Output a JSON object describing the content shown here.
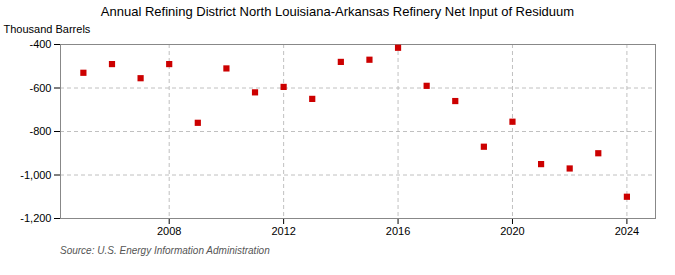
{
  "chart_data": {
    "type": "scatter",
    "title": "Annual Refining District North Louisiana-Arkansas Refinery Net Input of Residuum",
    "ylabel": "Thousand Barrels",
    "annotation": "Source: U.S. Energy Information Administration",
    "x": [
      2005,
      2006,
      2007,
      2008,
      2009,
      2010,
      2011,
      2012,
      2013,
      2014,
      2015,
      2016,
      2017,
      2018,
      2019,
      2020,
      2021,
      2022,
      2023,
      2024
    ],
    "values": [
      -530,
      -490,
      -555,
      -490,
      -760,
      -510,
      -620,
      -595,
      -650,
      -480,
      -470,
      -415,
      -590,
      -660,
      -870,
      -755,
      -950,
      -970,
      -900,
      -1100
    ],
    "color": "#cc0000",
    "marker": "square",
    "xlim": [
      2004.2,
      2025.0
    ],
    "xticks": [
      2008,
      2012,
      2016,
      2020,
      2024
    ],
    "ylim": [
      -1200,
      -400
    ],
    "yticks": [
      {
        "value": -1200,
        "label": "-1,200"
      },
      {
        "value": -1000,
        "label": "-1,000"
      },
      -800,
      -600,
      -400
    ],
    "grid": true
  }
}
